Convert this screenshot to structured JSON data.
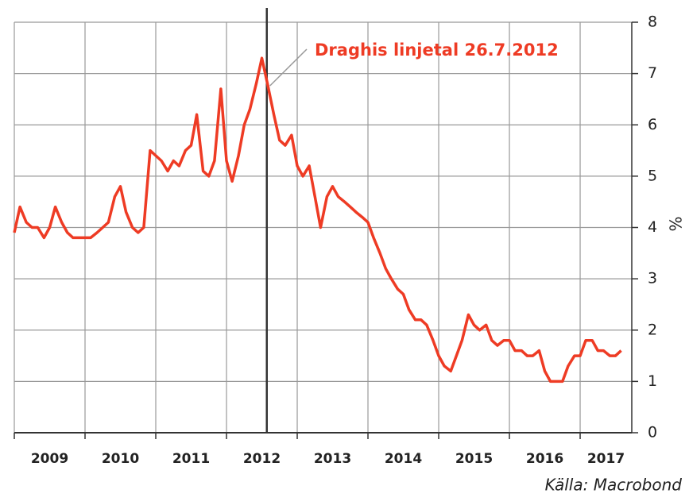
{
  "chart_data": {
    "type": "line",
    "y_axis_label": "%",
    "annotation": "Draghis linjetal 26.7.2012",
    "annotation_x": 2012.57,
    "source": "Källa: Macrobond",
    "xlim": [
      2009,
      2017.73
    ],
    "xticks": [
      {
        "value": 2009,
        "label": "2009"
      },
      {
        "value": 2010,
        "label": "2010"
      },
      {
        "value": 2011,
        "label": "2011"
      },
      {
        "value": 2012,
        "label": "2012"
      },
      {
        "value": 2013,
        "label": "2013"
      },
      {
        "value": 2014,
        "label": "2014"
      },
      {
        "value": 2015,
        "label": "2015"
      },
      {
        "value": 2016,
        "label": "2016"
      },
      {
        "value": 2017,
        "label": "2017"
      }
    ],
    "ylim": [
      0,
      8
    ],
    "yticks": [
      0,
      1,
      2,
      3,
      4,
      5,
      6,
      7,
      8
    ],
    "grid": true,
    "x": [
      2009.0,
      2009.08,
      2009.17,
      2009.25,
      2009.33,
      2009.42,
      2009.5,
      2009.58,
      2009.67,
      2009.75,
      2009.83,
      2009.92,
      2010.0,
      2010.08,
      2010.17,
      2010.25,
      2010.33,
      2010.42,
      2010.5,
      2010.58,
      2010.67,
      2010.75,
      2010.83,
      2010.92,
      2011.0,
      2011.08,
      2011.17,
      2011.25,
      2011.33,
      2011.42,
      2011.5,
      2011.58,
      2011.67,
      2011.75,
      2011.83,
      2011.92,
      2012.0,
      2012.08,
      2012.17,
      2012.25,
      2012.33,
      2012.42,
      2012.5,
      2012.58,
      2012.67,
      2012.75,
      2012.83,
      2012.92,
      2013.0,
      2013.08,
      2013.17,
      2013.25,
      2013.33,
      2013.42,
      2013.5,
      2013.58,
      2013.67,
      2013.75,
      2013.83,
      2013.92,
      2014.0,
      2014.08,
      2014.17,
      2014.25,
      2014.33,
      2014.42,
      2014.5,
      2014.58,
      2014.67,
      2014.75,
      2014.83,
      2014.92,
      2015.0,
      2015.08,
      2015.17,
      2015.25,
      2015.33,
      2015.42,
      2015.5,
      2015.58,
      2015.67,
      2015.75,
      2015.83,
      2015.92,
      2016.0,
      2016.08,
      2016.17,
      2016.25,
      2016.33,
      2016.42,
      2016.5,
      2016.58,
      2016.67,
      2016.75,
      2016.83,
      2016.92,
      2017.0,
      2017.08,
      2017.17,
      2017.25,
      2017.33,
      2017.42,
      2017.5,
      2017.58
    ],
    "series": [
      {
        "color": "#ee3b24",
        "values": [
          3.9,
          4.4,
          4.1,
          4.0,
          4.0,
          3.8,
          4.0,
          4.4,
          4.1,
          3.9,
          3.8,
          3.8,
          3.8,
          3.8,
          3.9,
          4.0,
          4.1,
          4.6,
          4.8,
          4.3,
          4.0,
          3.9,
          4.0,
          5.5,
          5.4,
          5.3,
          5.1,
          5.3,
          5.2,
          5.5,
          5.6,
          6.2,
          5.1,
          5.0,
          5.3,
          6.7,
          5.3,
          4.9,
          5.4,
          6.0,
          6.3,
          6.8,
          7.3,
          6.8,
          6.2,
          5.7,
          5.6,
          5.8,
          5.2,
          5.0,
          5.2,
          4.6,
          4.0,
          4.6,
          4.8,
          4.6,
          4.5,
          4.4,
          4.3,
          4.2,
          4.1,
          3.8,
          3.5,
          3.2,
          3.0,
          2.8,
          2.7,
          2.4,
          2.2,
          2.2,
          2.1,
          1.8,
          1.5,
          1.3,
          1.2,
          1.5,
          1.8,
          2.3,
          2.1,
          2.0,
          2.1,
          1.8,
          1.7,
          1.8,
          1.8,
          1.6,
          1.6,
          1.5,
          1.5,
          1.6,
          1.2,
          1.0,
          1.0,
          1.0,
          1.3,
          1.5,
          1.5,
          1.8,
          1.8,
          1.6,
          1.6,
          1.5,
          1.5,
          1.6
        ]
      }
    ]
  }
}
